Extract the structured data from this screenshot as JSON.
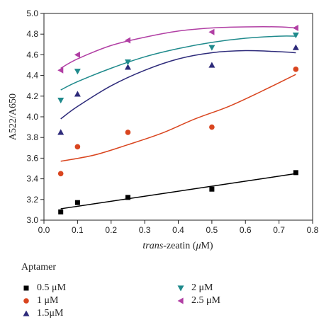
{
  "chart_data": {
    "type": "scatter",
    "xlabel_italic": "trans",
    "xlabel_rest": "-zeatin (",
    "xlabel_mu": "μ",
    "xlabel_end": "M)",
    "ylabel": "A522/A650",
    "xlim": [
      0.0,
      0.8
    ],
    "ylim": [
      3.0,
      5.0
    ],
    "xticks": [
      "0.0",
      "0.1",
      "0.2",
      "0.3",
      "0.4",
      "0.5",
      "0.6",
      "0.7",
      "0.8"
    ],
    "yticks": [
      "3.0",
      "3.2",
      "3.4",
      "3.6",
      "3.8",
      "4.0",
      "4.2",
      "4.4",
      "4.6",
      "4.8",
      "5.0"
    ],
    "legend_title": "Aptamer",
    "legend_placement": "bottom",
    "grid": false,
    "series": [
      {
        "name": "0.5 μM",
        "marker": "square",
        "color": "#000000",
        "x": [
          0.05,
          0.1,
          0.25,
          0.5,
          0.75
        ],
        "y": [
          3.08,
          3.17,
          3.22,
          3.3,
          3.46
        ],
        "fit_x": [
          0.05,
          0.75
        ],
        "fit_y": [
          3.11,
          3.45
        ]
      },
      {
        "name": "1 μM",
        "marker": "circle",
        "color": "#d9451f",
        "x": [
          0.05,
          0.1,
          0.25,
          0.5,
          0.75
        ],
        "y": [
          3.45,
          3.71,
          3.85,
          3.9,
          4.46
        ],
        "fit_x": [
          0.05,
          0.15,
          0.25,
          0.35,
          0.45,
          0.55,
          0.65,
          0.75
        ],
        "fit_y": [
          3.57,
          3.63,
          3.73,
          3.84,
          3.98,
          4.1,
          4.25,
          4.41
        ]
      },
      {
        "name": "1.5μM",
        "marker": "triangle-up",
        "color": "#2d2a7a",
        "x": [
          0.05,
          0.1,
          0.25,
          0.5,
          0.75
        ],
        "y": [
          3.85,
          4.22,
          4.48,
          4.5,
          4.67
        ],
        "fit_x": [
          0.05,
          0.1,
          0.2,
          0.3,
          0.4,
          0.5,
          0.6,
          0.7,
          0.75
        ],
        "fit_y": [
          3.98,
          4.1,
          4.3,
          4.45,
          4.56,
          4.62,
          4.64,
          4.63,
          4.62
        ]
      },
      {
        "name": "2 μM",
        "marker": "triangle-down",
        "color": "#1f8a8c",
        "x": [
          0.05,
          0.1,
          0.25,
          0.5,
          0.75
        ],
        "y": [
          4.16,
          4.44,
          4.53,
          4.67,
          4.79
        ],
        "fit_x": [
          0.05,
          0.1,
          0.2,
          0.3,
          0.4,
          0.5,
          0.6,
          0.7,
          0.75
        ],
        "fit_y": [
          4.26,
          4.34,
          4.47,
          4.58,
          4.66,
          4.72,
          4.76,
          4.78,
          4.78
        ]
      },
      {
        "name": "2.5 μM",
        "marker": "triangle-left",
        "color": "#b13fa4",
        "x": [
          0.05,
          0.1,
          0.25,
          0.5,
          0.75
        ],
        "y": [
          4.45,
          4.6,
          4.74,
          4.82,
          4.86
        ],
        "fit_x": [
          0.05,
          0.1,
          0.2,
          0.3,
          0.4,
          0.5,
          0.6,
          0.7,
          0.75
        ],
        "fit_y": [
          4.47,
          4.56,
          4.69,
          4.77,
          4.83,
          4.86,
          4.87,
          4.87,
          4.86
        ]
      }
    ]
  }
}
